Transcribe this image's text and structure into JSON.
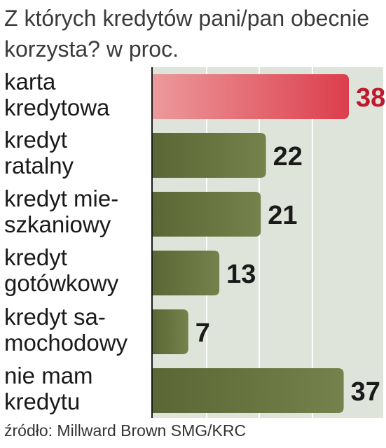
{
  "chart_data": {
    "type": "bar",
    "orientation": "horizontal",
    "title": "Z których kredytów pani/pan obecnie korzysta? w proc.",
    "categories": [
      "karta kredytowa",
      "kredyt ratalny",
      "kredyt mieszkaniowy",
      "kredyt gotówkowy",
      "kredyt samochodowy",
      "nie mam kredytu"
    ],
    "category_lines": [
      [
        "karta",
        "kredytowa"
      ],
      [
        "kredyt",
        "ratalny"
      ],
      [
        "kredyt mie-",
        "szkaniowy"
      ],
      [
        "kredyt",
        "gotówkowy"
      ],
      [
        "kredyt sa-",
        "mochodowy"
      ],
      [
        "nie mam",
        "kredytu"
      ]
    ],
    "values": [
      38,
      22,
      21,
      13,
      7,
      37
    ],
    "value_labels": [
      "38",
      "22",
      "21",
      "13",
      "7",
      "37"
    ],
    "highlight_index": 0,
    "xlim": [
      0,
      38
    ],
    "grid": true,
    "colors": {
      "highlight_bar": "#dc3e4c",
      "highlight_bar_light": "#ec9a9c",
      "bar": "#5a6634",
      "bar_light": "#76824c",
      "plot_background": "#dfe4db",
      "grid": "#ffffff",
      "highlight_label": "#c0182a",
      "label": "#1a1a1a"
    }
  },
  "source": "źródło: Millward Brown SMG/KRC"
}
